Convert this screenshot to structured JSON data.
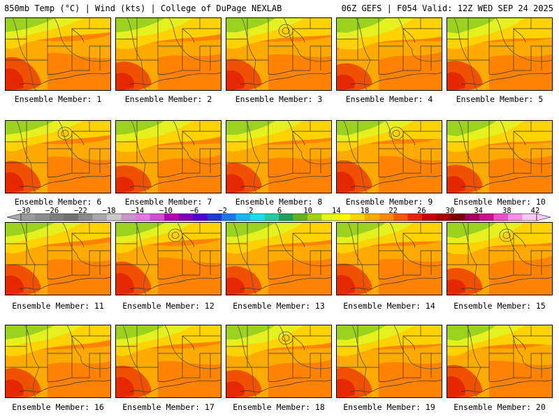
{
  "header": {
    "left": "850mb Temp (°C) | Wind (kts) | College of DuPage NEXLAB",
    "right": "06Z GEFS | F054 Valid: 12Z WED SEP 24 2025"
  },
  "caption_prefix": "Ensemble Member:",
  "members": [
    1,
    2,
    3,
    4,
    5,
    6,
    7,
    8,
    9,
    10,
    11,
    12,
    13,
    14,
    15,
    16,
    17,
    18,
    19,
    20
  ],
  "colorbar": {
    "tick_labels": [
      "-30",
      "-26",
      "-22",
      "-18",
      "-14",
      "-10",
      "-6",
      "-2",
      "2",
      "6",
      "10",
      "14",
      "18",
      "22",
      "26",
      "30",
      "34",
      "38",
      "42"
    ],
    "colors": [
      "#9a9a9a",
      "#8c8c8c",
      "#7e7e7e",
      "#707070",
      "#8a8a8a",
      "#a9a9a9",
      "#c8c8c8",
      "#c896c8",
      "#e678e6",
      "#d24ed2",
      "#b400b4",
      "#8200b4",
      "#5000c8",
      "#1e3cc8",
      "#1e78e6",
      "#1eb4f0",
      "#1edcf0",
      "#28c8a0",
      "#1ea05a",
      "#64b41e",
      "#a0d21e",
      "#e6f51e",
      "#fffa00",
      "#ffd200",
      "#ffaa00",
      "#ff8c00",
      "#f05a00",
      "#e12800",
      "#c80000",
      "#a00000",
      "#780000",
      "#a0005a",
      "#c8148c",
      "#e650c8",
      "#f58ce6",
      "#fac8f5"
    ]
  },
  "map_colors": {
    "green": "#9ad21e",
    "yellow": "#e6f01e",
    "gold": "#ffd200",
    "orange": "#ffaa00",
    "dark_orange": "#ff8200",
    "red_orange": "#f05000",
    "red": "#e62800"
  }
}
